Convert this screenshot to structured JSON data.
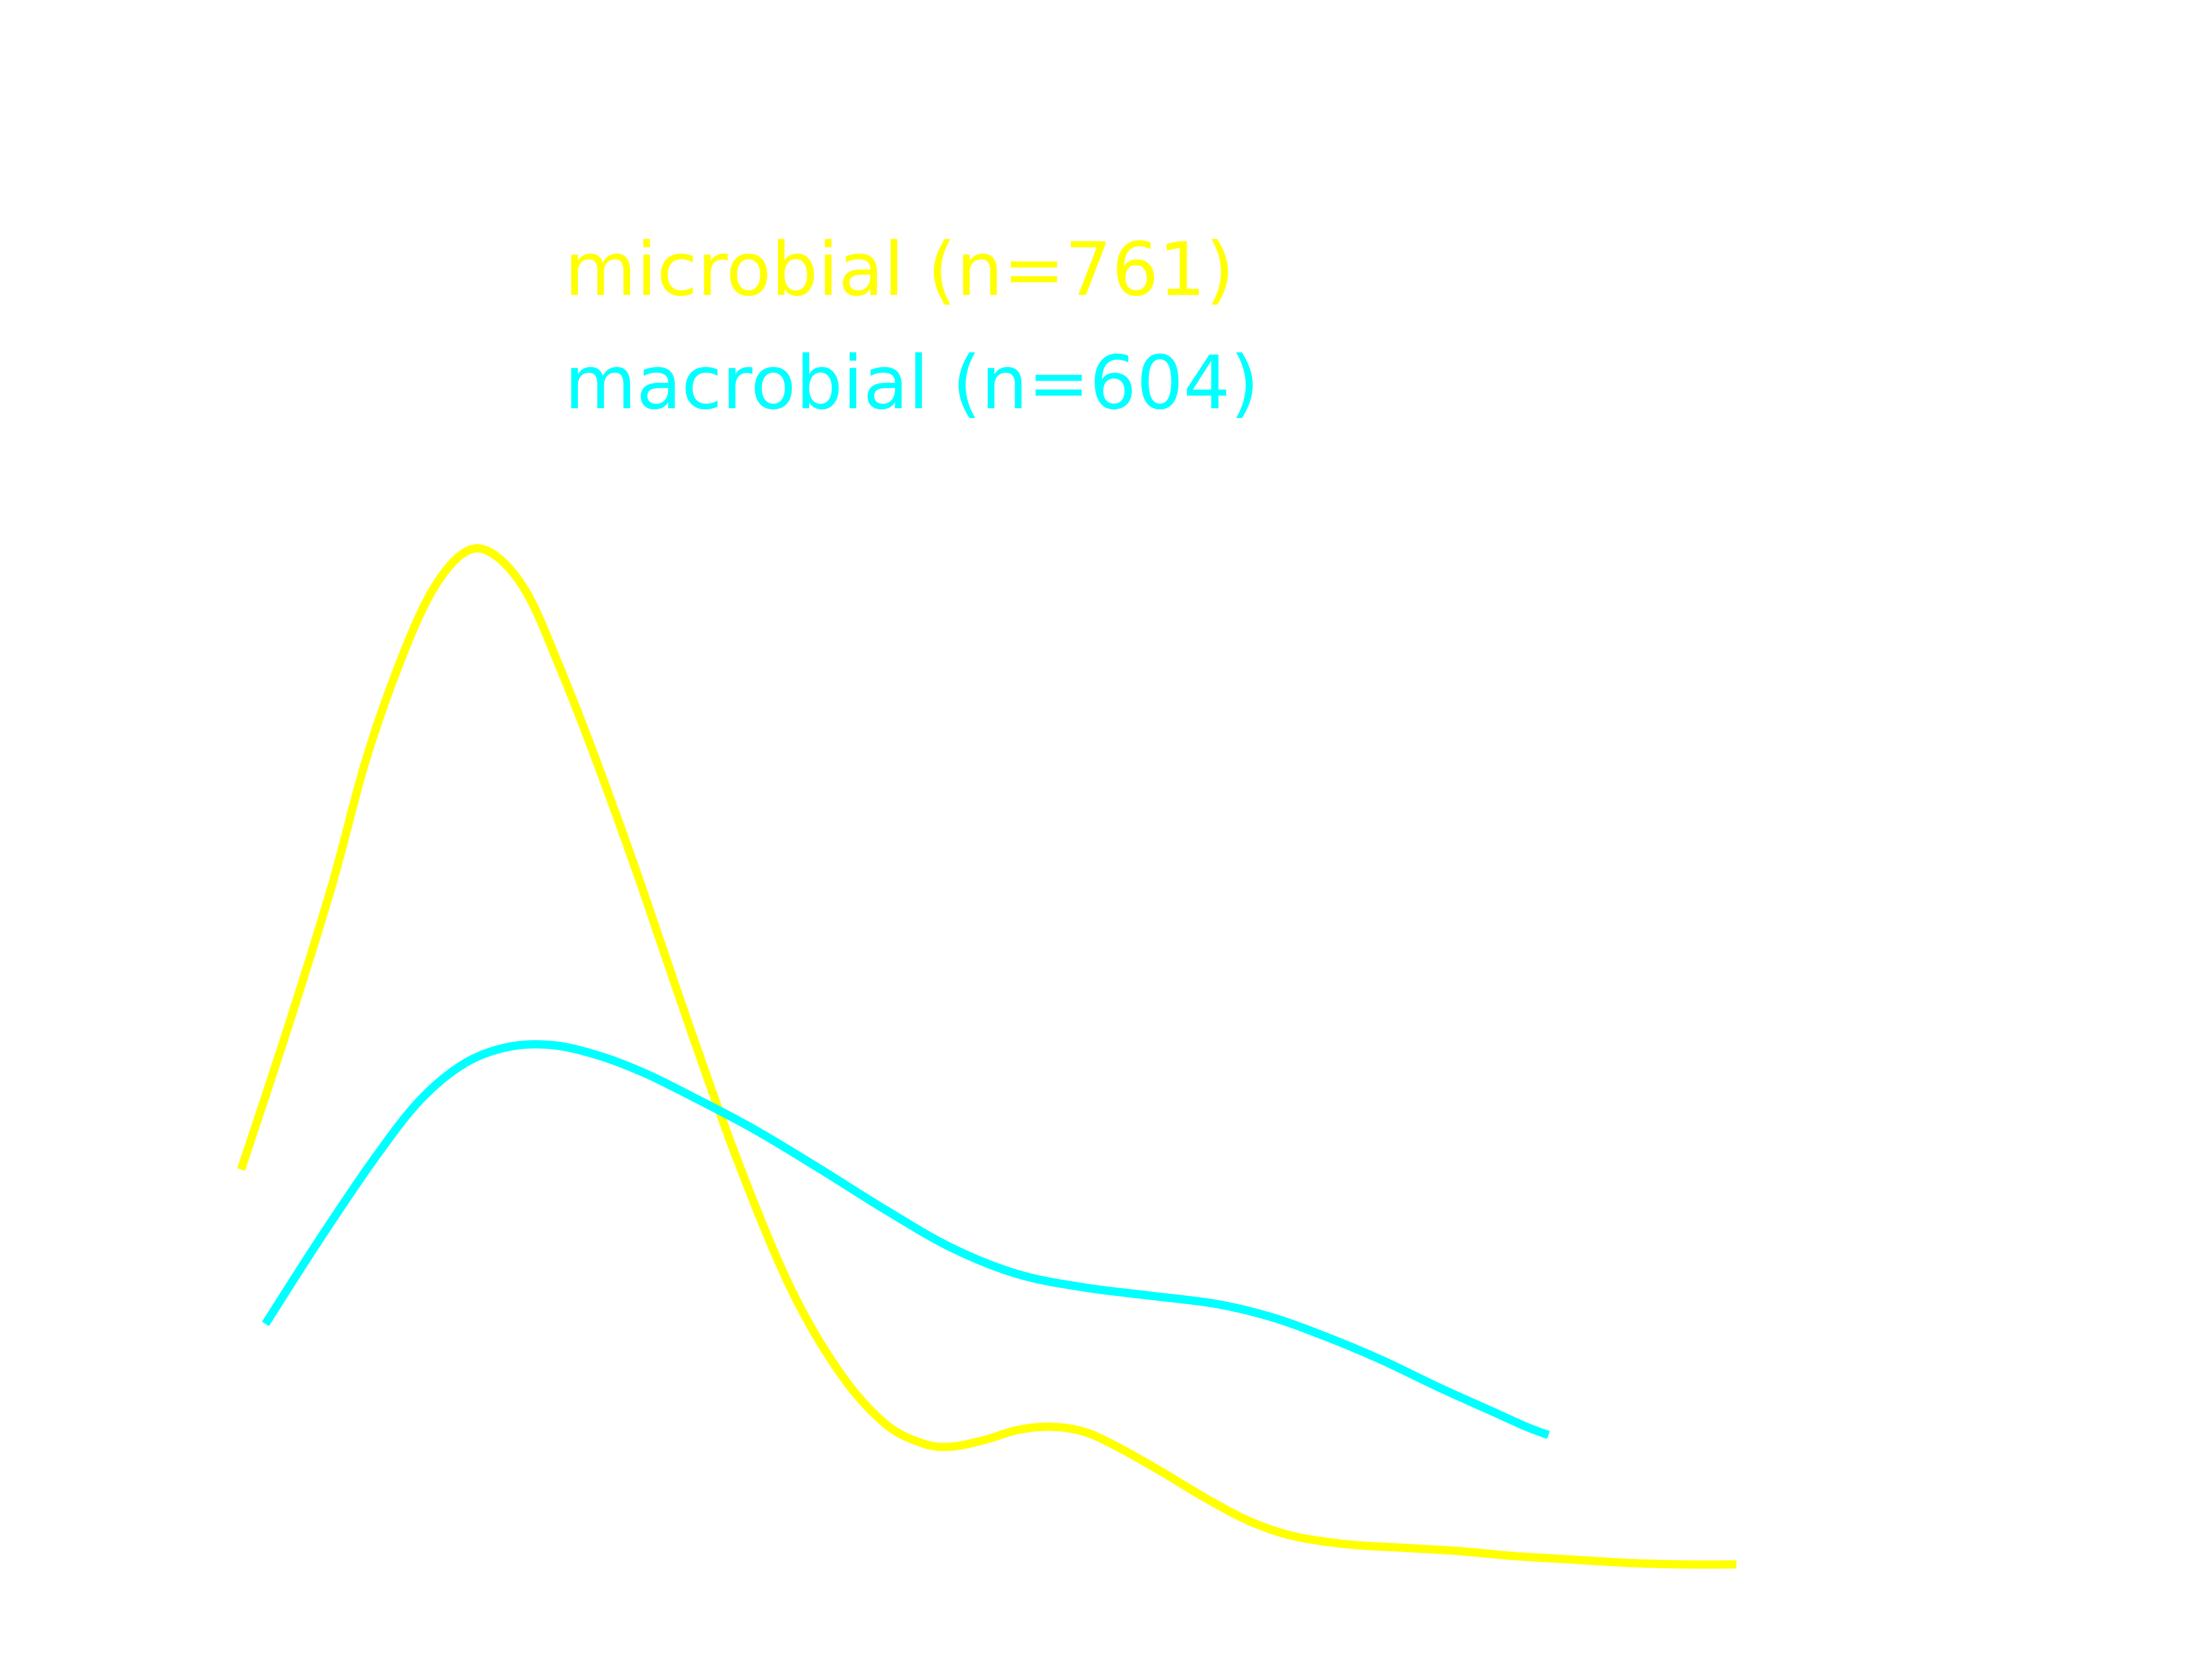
{
  "chart_data": {
    "type": "line",
    "title": "",
    "xlabel": "",
    "ylabel": "",
    "grid": false,
    "axes_visible": false,
    "legend": {
      "placement": "upper-left"
    },
    "xlim": [
      0,
      1
    ],
    "ylim": [
      0,
      1
    ],
    "series": [
      {
        "name": "microbial (n=761)",
        "color": "#ffff00",
        "points": [
          [
            0.109,
            0.295
          ],
          [
            0.13,
            0.38
          ],
          [
            0.15,
            0.466
          ],
          [
            0.165,
            0.54
          ],
          [
            0.18,
            0.598
          ],
          [
            0.195,
            0.643
          ],
          [
            0.21,
            0.667
          ],
          [
            0.223,
            0.666
          ],
          [
            0.238,
            0.643
          ],
          [
            0.253,
            0.598
          ],
          [
            0.27,
            0.54
          ],
          [
            0.29,
            0.466
          ],
          [
            0.312,
            0.38
          ],
          [
            0.335,
            0.295
          ],
          [
            0.358,
            0.222
          ],
          [
            0.38,
            0.172
          ],
          [
            0.4,
            0.142
          ],
          [
            0.417,
            0.13
          ],
          [
            0.43,
            0.128
          ],
          [
            0.445,
            0.132
          ],
          [
            0.46,
            0.138
          ],
          [
            0.475,
            0.14
          ],
          [
            0.49,
            0.137
          ],
          [
            0.505,
            0.128
          ],
          [
            0.525,
            0.113
          ],
          [
            0.545,
            0.097
          ],
          [
            0.565,
            0.083
          ],
          [
            0.585,
            0.074
          ],
          [
            0.61,
            0.069
          ],
          [
            0.635,
            0.067
          ],
          [
            0.66,
            0.065
          ],
          [
            0.685,
            0.062
          ],
          [
            0.71,
            0.06
          ],
          [
            0.735,
            0.058
          ],
          [
            0.76,
            0.057
          ],
          [
            0.785,
            0.057
          ]
        ]
      },
      {
        "name": "macrobial (n=604)",
        "color": "#00ffff",
        "points": [
          [
            0.12,
            0.202
          ],
          [
            0.145,
            0.254
          ],
          [
            0.17,
            0.303
          ],
          [
            0.19,
            0.337
          ],
          [
            0.21,
            0.359
          ],
          [
            0.23,
            0.369
          ],
          [
            0.25,
            0.37
          ],
          [
            0.27,
            0.364
          ],
          [
            0.29,
            0.354
          ],
          [
            0.31,
            0.341
          ],
          [
            0.34,
            0.32
          ],
          [
            0.37,
            0.296
          ],
          [
            0.4,
            0.271
          ],
          [
            0.43,
            0.248
          ],
          [
            0.46,
            0.232
          ],
          [
            0.49,
            0.224
          ],
          [
            0.52,
            0.219
          ],
          [
            0.55,
            0.214
          ],
          [
            0.575,
            0.206
          ],
          [
            0.6,
            0.194
          ],
          [
            0.625,
            0.18
          ],
          [
            0.65,
            0.164
          ],
          [
            0.675,
            0.149
          ],
          [
            0.69,
            0.14
          ],
          [
            0.7,
            0.135
          ]
        ]
      }
    ]
  }
}
